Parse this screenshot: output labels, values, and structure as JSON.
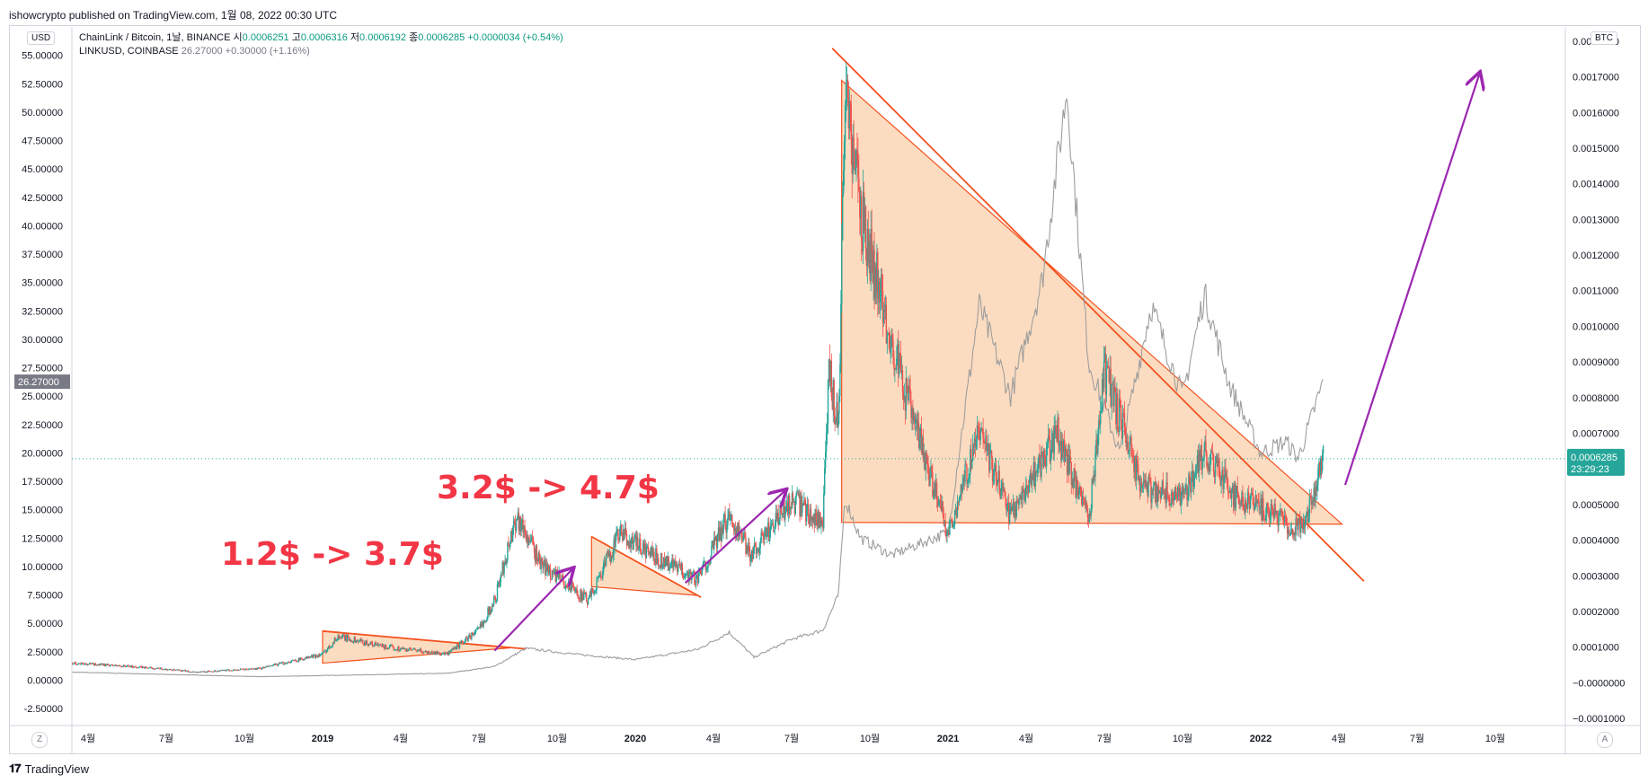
{
  "publisher_line": "ishowcrypto published on TradingView.com, 1월 08, 2022 00:30 UTC",
  "legend": {
    "main_label": "ChainLink / Bitcoin, 1날, BINANCE",
    "o_label": "시",
    "o_val": "0.0006251",
    "h_label": "고",
    "h_val": "0.0006316",
    "l_label": "저",
    "l_val": "0.0006192",
    "c_label": "종",
    "c_val": "0.0006285",
    "change": "+0.0000034 (+0.54%)",
    "second_label": "LINKUSD, COINBASE",
    "second_val": "26.27000",
    "second_change": "+0.30000 (+1.16%)"
  },
  "left_unit": "USD",
  "right_unit": "BTC",
  "bottom_left_button": "Z",
  "bottom_right_button": "A",
  "footer_brand": "TradingView",
  "annotations": {
    "text1": "1.2$ -> 3.7$",
    "text2": "3.2$ -> 4.7$"
  },
  "colors": {
    "up": "#26a69a",
    "down": "#ef5350",
    "usd_line": "#9e9e9e",
    "trendline": "#f4511e",
    "triangle_fill": "#fbd6b5",
    "arrow": "#9c27b0",
    "annotation_text": "#f23645",
    "price_tag_right": "#26a69a",
    "price_tag_left": "#787b86"
  },
  "chart_data": {
    "type": "line",
    "title": "ChainLink / Bitcoin, 1날, BINANCE",
    "x_tick_labels": [
      "4월",
      "7월",
      "10월",
      "2019",
      "4월",
      "7월",
      "10월",
      "2020",
      "4월",
      "7월",
      "10월",
      "2021",
      "4월",
      "7월",
      "10월",
      "2022",
      "4월",
      "7월",
      "10월"
    ],
    "left_axis": {
      "unit": "USD",
      "ticks": [
        "55.00000",
        "52.50000",
        "50.00000",
        "47.50000",
        "45.00000",
        "42.50000",
        "40.00000",
        "37.50000",
        "35.00000",
        "32.50000",
        "30.00000",
        "27.50000",
        "25.00000",
        "22.50000",
        "20.00000",
        "17.50000",
        "15.00000",
        "12.50000",
        "10.00000",
        "7.50000",
        "5.00000",
        "2.50000",
        "0.00000",
        "-2.50000"
      ],
      "range": [
        -4.0,
        57.5
      ],
      "current_price_tag": "26.27000"
    },
    "right_axis": {
      "unit": "BTC",
      "ticks": [
        "0.0018000",
        "0.0017000",
        "0.0016000",
        "0.0015000",
        "0.0014000",
        "0.0013000",
        "0.0012000",
        "0.0011000",
        "0.0010000",
        "0.0009000",
        "0.0008000",
        "0.0007000",
        "0.0006000",
        "0.0005000",
        "0.0004000",
        "0.0003000",
        "0.0002000",
        "0.0001000",
        "−0.0000000",
        "−0.0001000"
      ],
      "range": [
        -0.00012,
        0.00184
      ],
      "current_price_tag": "0.0006285",
      "countdown": "23:29:23"
    },
    "series": [
      {
        "name": "ChainLink / Bitcoin",
        "axis": "right",
        "style": "candles",
        "keypoints": [
          [
            2018.2,
            5.5e-05
          ],
          [
            2018.4,
            4.5e-05
          ],
          [
            2018.6,
            3e-05
          ],
          [
            2018.8,
            4e-05
          ],
          [
            2019.0,
            8e-05
          ],
          [
            2019.05,
            0.00013
          ],
          [
            2019.2,
            0.0001
          ],
          [
            2019.4,
            8e-05
          ],
          [
            2019.5,
            0.00015
          ],
          [
            2019.55,
            0.00023
          ],
          [
            2019.62,
            0.00047
          ],
          [
            2019.7,
            0.00033
          ],
          [
            2019.85,
            0.00023
          ],
          [
            2019.95,
            0.00042
          ],
          [
            2020.05,
            0.00036
          ],
          [
            2020.2,
            0.00029
          ],
          [
            2020.3,
            0.00047
          ],
          [
            2020.37,
            0.00036
          ],
          [
            2020.5,
            0.00051
          ],
          [
            2020.6,
            0.00045
          ],
          [
            2020.62,
            0.00087
          ],
          [
            2020.65,
            0.00072
          ],
          [
            2020.67,
            0.00168
          ],
          [
            2020.72,
            0.00132
          ],
          [
            2020.85,
            0.00085
          ],
          [
            2021.0,
            0.00042
          ],
          [
            2021.1,
            0.0007
          ],
          [
            2021.2,
            0.00047
          ],
          [
            2021.35,
            0.0007
          ],
          [
            2021.45,
            0.00045
          ],
          [
            2021.5,
            0.00088
          ],
          [
            2021.62,
            0.00055
          ],
          [
            2021.75,
            0.00052
          ],
          [
            2021.82,
            0.00065
          ],
          [
            2021.92,
            0.00052
          ],
          [
            2022.05,
            0.00047
          ],
          [
            2022.1,
            0.00042
          ],
          [
            2022.15,
            0.00047
          ],
          [
            2022.2,
            0.00063
          ]
        ]
      },
      {
        "name": "LINKUSD, COINBASE",
        "axis": "left",
        "style": "line",
        "keypoints": [
          [
            2018.2,
            0.7
          ],
          [
            2018.5,
            0.5
          ],
          [
            2018.8,
            0.3
          ],
          [
            2019.0,
            0.4
          ],
          [
            2019.4,
            0.6
          ],
          [
            2019.55,
            1.2
          ],
          [
            2019.65,
            2.8
          ],
          [
            2019.8,
            2.3
          ],
          [
            2020.0,
            1.8
          ],
          [
            2020.2,
            2.7
          ],
          [
            2020.3,
            4.2
          ],
          [
            2020.38,
            2.0
          ],
          [
            2020.5,
            3.6
          ],
          [
            2020.6,
            4.4
          ],
          [
            2020.65,
            7.5
          ],
          [
            2020.67,
            16.0
          ],
          [
            2020.72,
            12.5
          ],
          [
            2020.82,
            11.0
          ],
          [
            2021.0,
            13.0
          ],
          [
            2021.1,
            33.0
          ],
          [
            2021.2,
            25.0
          ],
          [
            2021.3,
            35.0
          ],
          [
            2021.38,
            52.0
          ],
          [
            2021.45,
            28.0
          ],
          [
            2021.55,
            20.0
          ],
          [
            2021.65,
            33.0
          ],
          [
            2021.75,
            25.0
          ],
          [
            2021.82,
            34.0
          ],
          [
            2021.9,
            26.0
          ],
          [
            2022.0,
            20.0
          ],
          [
            2022.08,
            21.0
          ],
          [
            2022.12,
            19.5
          ],
          [
            2022.2,
            26.27
          ]
        ]
      }
    ]
  }
}
